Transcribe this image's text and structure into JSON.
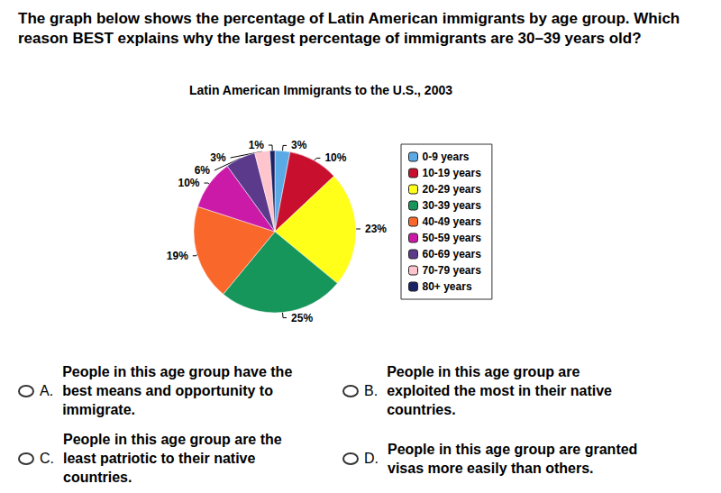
{
  "question": "The graph below shows the percentage of Latin American immigrants by age group. Which reason BEST explains why the largest percentage of immigrants are 30–39 years old?",
  "chart_data": {
    "type": "pie",
    "title": "Latin American Immigrants to the U.S., 2003",
    "categories": [
      "0-9 years",
      "10-19 years",
      "20-29 years",
      "30-39 years",
      "40-49 years",
      "50-59 years",
      "60-69 years",
      "70-79 years",
      "80+ years"
    ],
    "values": [
      3,
      10,
      23,
      25,
      19,
      10,
      6,
      3,
      1
    ],
    "value_labels": [
      "3%",
      "10%",
      "23%",
      "25%",
      "19%",
      "10%",
      "6%",
      "3%",
      "1%"
    ],
    "colors": [
      "#5aaae6",
      "#c8102e",
      "#ffff1a",
      "#16965a",
      "#f9672a",
      "#cc1aa8",
      "#5b3a8c",
      "#ffc4cc",
      "#1c2266"
    ],
    "data_labels": true,
    "legend": "right"
  },
  "options": [
    {
      "letter": "A.",
      "text": "People in this age group have the best means and opportunity to immigrate."
    },
    {
      "letter": "B.",
      "text": "People in this age group are exploited the most in their native countries."
    },
    {
      "letter": "C.",
      "text": "People in this age group are the least patriotic to their native countries."
    },
    {
      "letter": "D.",
      "text": "People in this age group are granted visas more easily than others."
    }
  ]
}
